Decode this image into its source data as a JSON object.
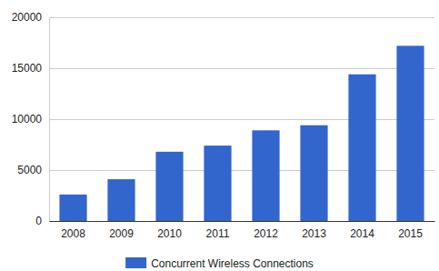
{
  "chart_data": {
    "type": "bar",
    "categories": [
      "2008",
      "2009",
      "2010",
      "2011",
      "2012",
      "2013",
      "2014",
      "2015"
    ],
    "series": [
      {
        "name": "Concurrent Wireless Connections",
        "color": "#3366cc",
        "values": [
          2600,
          4100,
          6800,
          7400,
          8900,
          9400,
          14400,
          17200
        ]
      }
    ],
    "ylim": [
      0,
      20000
    ],
    "yticks": [
      0,
      5000,
      10000,
      15000,
      20000
    ],
    "grid": true,
    "legend": "bottom"
  }
}
